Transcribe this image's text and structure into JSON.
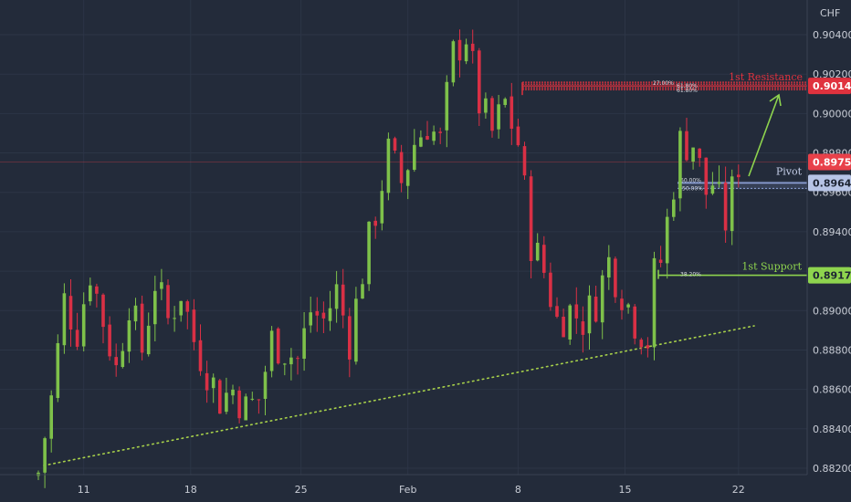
{
  "chart_data": {
    "type": "candlestick",
    "currency": "CHF",
    "y_axis": {
      "range": [
        0.8816,
        0.9063
      ],
      "tick_labels": [
        "0.90400",
        "0.90200",
        "0.90000",
        "0.89800",
        "0.89600",
        "0.89400",
        "0.89200",
        "0.89000",
        "0.88800",
        "0.88600",
        "0.88400",
        "0.88200"
      ],
      "tick_values": [
        0.904,
        0.902,
        0.9,
        0.898,
        0.896,
        0.894,
        0.892,
        0.89,
        0.888,
        0.886,
        0.884,
        0.882
      ]
    },
    "x_axis": {
      "tick_labels": [
        "11",
        "18",
        "25",
        "Feb",
        "8",
        "15",
        "22"
      ]
    },
    "grid": true,
    "colors": {
      "background": "#232b3a",
      "up": "#7ec14a",
      "down": "#d93045",
      "resistance": "#e0323e",
      "pivot": "#8ea2d8",
      "support": "#8ed44e",
      "trendline": "#a8d24a",
      "grid": "#2c3546",
      "current_price": "#e8414a"
    },
    "levels": {
      "resistance": {
        "label": "1st Resistance",
        "value": "0.90140",
        "fib_labels": [
          "27.00%",
          "61.80%",
          "61.80%"
        ]
      },
      "pivot": {
        "label": "Pivot",
        "value": "0.89648",
        "fib_labels": [
          "60.00%",
          "50.00%"
        ]
      },
      "support": {
        "label": "1st Support",
        "value": "0.89179",
        "fib_labels": [
          "38.20%"
        ]
      },
      "current_price": {
        "value": "0.89754"
      }
    },
    "price_path": [
      [
        0,
        0.8818
      ],
      [
        2,
        0.8855
      ],
      [
        4,
        0.8905
      ],
      [
        6,
        0.889
      ],
      [
        8,
        0.892
      ],
      [
        10,
        0.8895
      ],
      [
        12,
        0.887
      ],
      [
        14,
        0.8905
      ],
      [
        16,
        0.888
      ],
      [
        18,
        0.8915
      ],
      [
        20,
        0.8895
      ],
      [
        22,
        0.891
      ],
      [
        24,
        0.8885
      ],
      [
        26,
        0.887
      ],
      [
        28,
        0.8855
      ],
      [
        30,
        0.886
      ],
      [
        32,
        0.885
      ],
      [
        34,
        0.8855
      ],
      [
        36,
        0.8885
      ],
      [
        38,
        0.888
      ],
      [
        40,
        0.8875
      ],
      [
        42,
        0.89
      ],
      [
        44,
        0.8895
      ],
      [
        46,
        0.891
      ],
      [
        48,
        0.8885
      ],
      [
        50,
        0.892
      ],
      [
        52,
        0.895
      ],
      [
        54,
        0.898
      ],
      [
        56,
        0.8965
      ],
      [
        58,
        0.8985
      ],
      [
        60,
        0.8995
      ],
      [
        62,
        0.8985
      ],
      [
        64,
        0.903
      ],
      [
        66,
        0.904
      ],
      [
        68,
        0.9005
      ],
      [
        70,
        0.899
      ],
      [
        72,
        0.9005
      ],
      [
        74,
        0.8985
      ],
      [
        76,
        0.8935
      ],
      [
        78,
        0.892
      ],
      [
        80,
        0.8895
      ],
      [
        82,
        0.89
      ],
      [
        84,
        0.8895
      ],
      [
        86,
        0.8905
      ],
      [
        88,
        0.8925
      ],
      [
        90,
        0.891
      ],
      [
        92,
        0.8895
      ],
      [
        94,
        0.8885
      ],
      [
        95,
        0.8918
      ],
      [
        96,
        0.8925
      ],
      [
        98,
        0.8965
      ],
      [
        99,
        0.8985
      ],
      [
        101,
        0.8985
      ],
      [
        103,
        0.896
      ],
      [
        104,
        0.8965
      ],
      [
        106,
        0.8945
      ],
      [
        108,
        0.8975
      ]
    ]
  }
}
